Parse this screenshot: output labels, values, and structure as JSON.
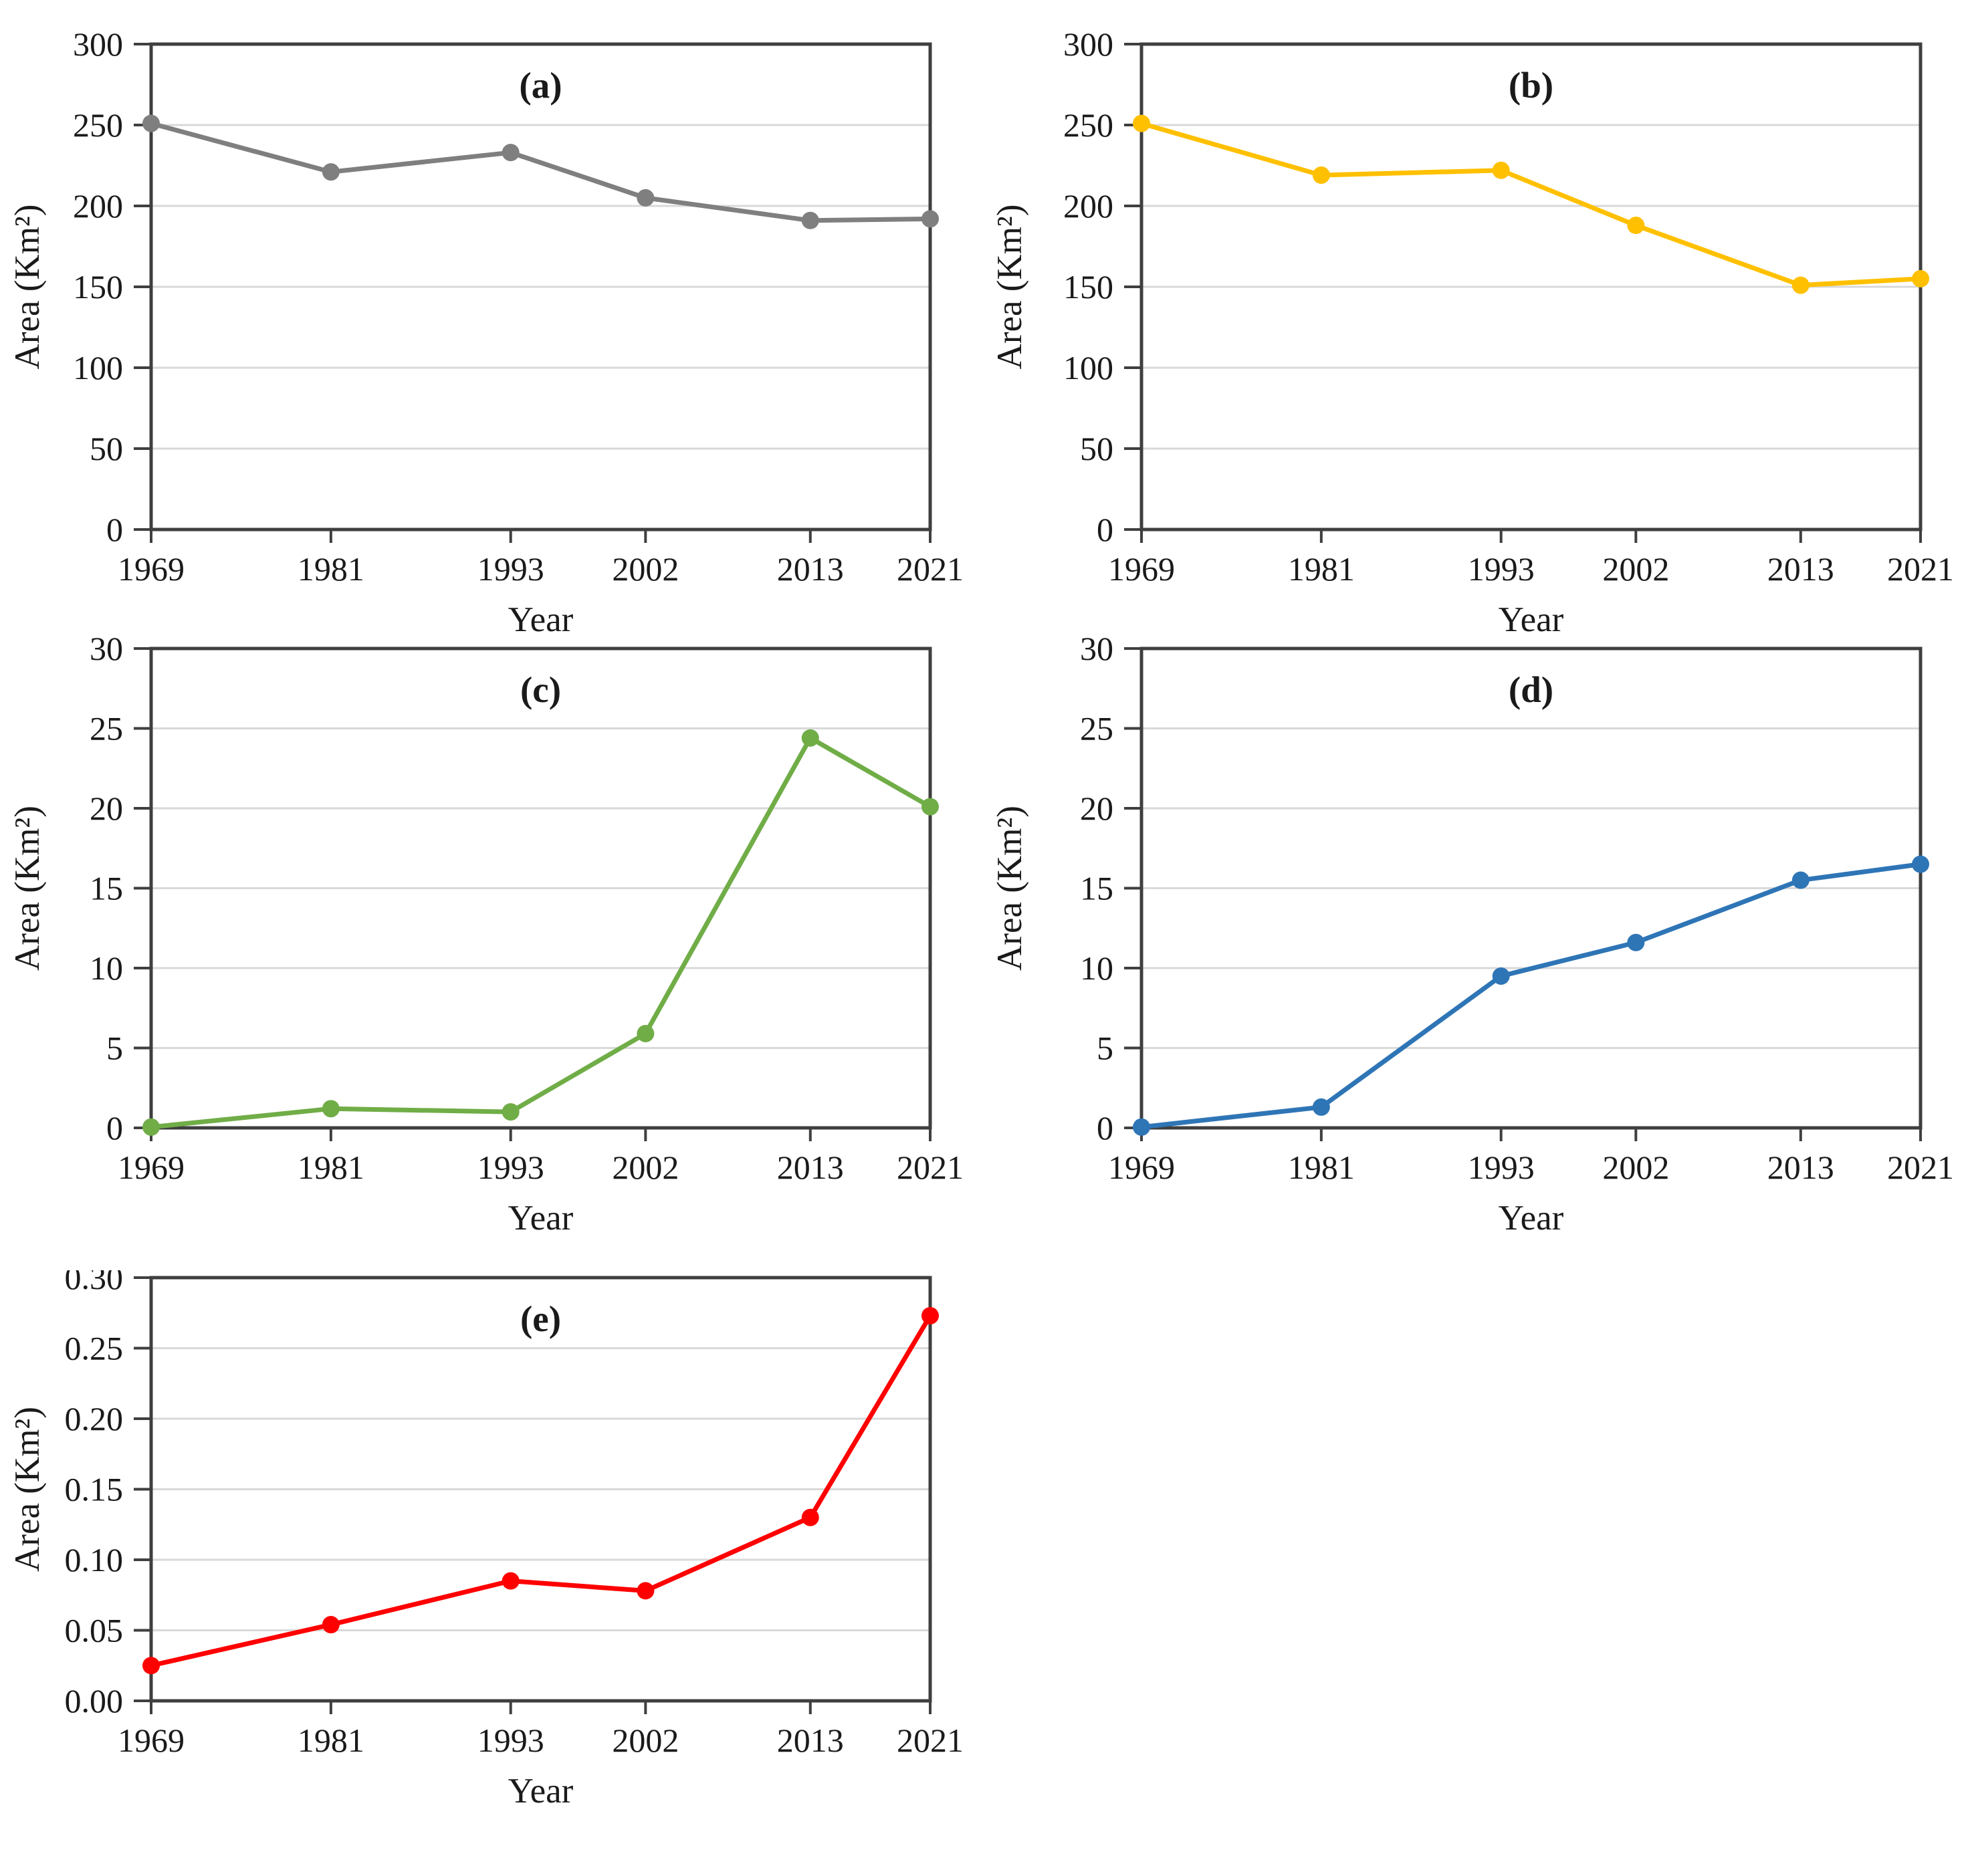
{
  "figure": {
    "x_axis_label": "Year",
    "y_axis_label": "Area (Km²)",
    "years": [
      "1969",
      "1981",
      "1993",
      "2002",
      "2013",
      "2021"
    ],
    "colors": {
      "axis": "#3f3f3f",
      "gridline": "#d9d9d9",
      "series_a": "#7f7f7f",
      "series_b": "#ffc000",
      "series_c": "#70ad47",
      "series_d": "#2e75b6",
      "series_e": "#ff0000"
    }
  },
  "chart_data": [
    {
      "id": "a",
      "type": "line",
      "title": "(a)",
      "xlabel": "Year",
      "ylabel": "Area (Km²)",
      "color": "#7f7f7f",
      "x": [
        1969,
        1981,
        1993,
        2002,
        2013,
        2021
      ],
      "x_labels": [
        "1969",
        "1981",
        "1993",
        "2002",
        "2013",
        "2021"
      ],
      "values": [
        251,
        221,
        233,
        205,
        191,
        192
      ],
      "ylim": [
        0,
        300
      ],
      "ystep": 50,
      "y_ticks": [
        "300",
        "250",
        "200",
        "150",
        "100",
        "50",
        "0"
      ],
      "grid": true,
      "legend": "none"
    },
    {
      "id": "b",
      "type": "line",
      "title": "(b)",
      "xlabel": "Year",
      "ylabel": "Area (Km²)",
      "color": "#ffc000",
      "x": [
        1969,
        1981,
        1993,
        2002,
        2013,
        2021
      ],
      "x_labels": [
        "1969",
        "1981",
        "1993",
        "2002",
        "2013",
        "2021"
      ],
      "values": [
        251,
        219,
        222,
        188,
        151,
        155
      ],
      "ylim": [
        0,
        300
      ],
      "ystep": 50,
      "y_ticks": [
        "300",
        "250",
        "200",
        "150",
        "100",
        "50",
        "0"
      ],
      "grid": true,
      "legend": "none"
    },
    {
      "id": "c",
      "type": "line",
      "title": "(c)",
      "xlabel": "Year",
      "ylabel": "Area (Km²)",
      "color": "#70ad47",
      "x": [
        1969,
        1981,
        1993,
        2002,
        2013,
        2021
      ],
      "x_labels": [
        "1969",
        "1981",
        "1993",
        "2002",
        "2013",
        "2021"
      ],
      "values": [
        0.05,
        1.2,
        1.0,
        5.9,
        24.4,
        20.1
      ],
      "ylim": [
        0,
        30
      ],
      "ystep": 5,
      "y_ticks": [
        "30",
        "25",
        "20",
        "15",
        "10",
        "5",
        "0"
      ],
      "grid": true,
      "legend": "none"
    },
    {
      "id": "d",
      "type": "line",
      "title": "(d)",
      "xlabel": "Year",
      "ylabel": "Area (Km²)",
      "color": "#2e75b6",
      "x": [
        1969,
        1981,
        1993,
        2002,
        2013,
        2021
      ],
      "x_labels": [
        "1969",
        "1981",
        "1993",
        "2002",
        "2013",
        "2021"
      ],
      "values": [
        0.05,
        1.3,
        9.5,
        11.6,
        15.5,
        16.5
      ],
      "ylim": [
        0,
        30
      ],
      "ystep": 5,
      "y_ticks": [
        "30",
        "25",
        "20",
        "15",
        "10",
        "5",
        "0"
      ],
      "grid": true,
      "legend": "none"
    },
    {
      "id": "e",
      "type": "line",
      "title": "(e)",
      "xlabel": "Year",
      "ylabel": "Area (Km²)",
      "color": "#ff0000",
      "x": [
        1969,
        1981,
        1993,
        2002,
        2013,
        2021
      ],
      "x_labels": [
        "1969",
        "1981",
        "1993",
        "2002",
        "2013",
        "2021"
      ],
      "values": [
        0.025,
        0.054,
        0.085,
        0.078,
        0.13,
        0.273
      ],
      "ylim": [
        0,
        0.3
      ],
      "ystep": 0.05,
      "y_ticks": [
        "0.30",
        "0.25",
        "0.20",
        "0.15",
        "0.10",
        "0.05",
        "0.00"
      ],
      "grid": true,
      "legend": "none"
    }
  ]
}
